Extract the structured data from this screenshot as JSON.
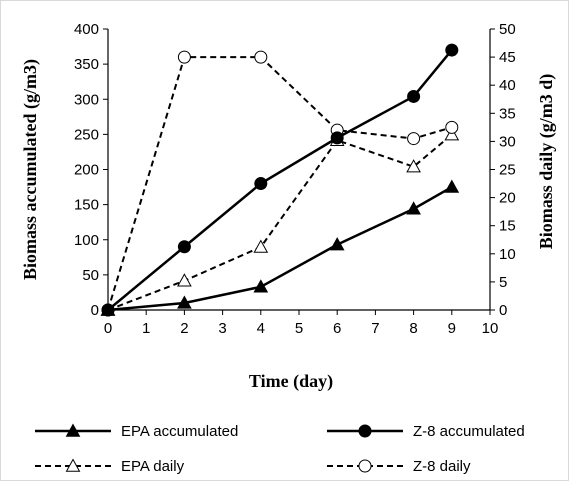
{
  "chart_data": {
    "type": "line",
    "title": "",
    "xlabel": "Time (day)",
    "ylabel_left": "Biomass accumulated (g/m3)",
    "ylabel_right": "Biomass daily  (g/m3 d)",
    "xlim": [
      0,
      10
    ],
    "ylim_left": [
      0,
      400
    ],
    "ylim_right": [
      0,
      50
    ],
    "x_ticks": [
      "0",
      "1",
      "2",
      "3",
      "4",
      "5",
      "6",
      "7",
      "8",
      "9",
      "10"
    ],
    "y_left_ticks": [
      "0",
      "50",
      "100",
      "150",
      "200",
      "250",
      "300",
      "350",
      "400"
    ],
    "y_right_ticks": [
      "0",
      "5",
      "10",
      "15",
      "20",
      "25",
      "30",
      "35",
      "40",
      "45",
      "50"
    ],
    "grid": false,
    "legend_position": "bottom",
    "series": [
      {
        "name": "EPA accumulated",
        "axis": "left",
        "style": "solid",
        "marker": "filled-triangle",
        "x": [
          0,
          2,
          4,
          6,
          8,
          9
        ],
        "y": [
          0,
          10,
          33,
          93,
          144,
          175
        ]
      },
      {
        "name": "Z-8 accumulated",
        "axis": "left",
        "style": "solid",
        "marker": "filled-circle",
        "x": [
          0,
          2,
          4,
          6,
          8,
          9
        ],
        "y": [
          0,
          90,
          180,
          245,
          304,
          370
        ]
      },
      {
        "name": "EPA daily",
        "axis": "right",
        "style": "dashed",
        "marker": "open-triangle",
        "x": [
          0,
          2,
          4,
          6,
          8,
          9
        ],
        "y": [
          0,
          5.2,
          11.2,
          30.2,
          25.5,
          31.2
        ]
      },
      {
        "name": "Z-8 daily",
        "axis": "right",
        "style": "dashed",
        "marker": "open-circle",
        "x": [
          0,
          2,
          4,
          6,
          8,
          9
        ],
        "y": [
          0,
          45,
          45,
          32,
          30.5,
          32.5
        ]
      }
    ],
    "colors": {
      "line": "#000000",
      "background": "#ffffff",
      "frame": "#d9d9d9"
    }
  }
}
